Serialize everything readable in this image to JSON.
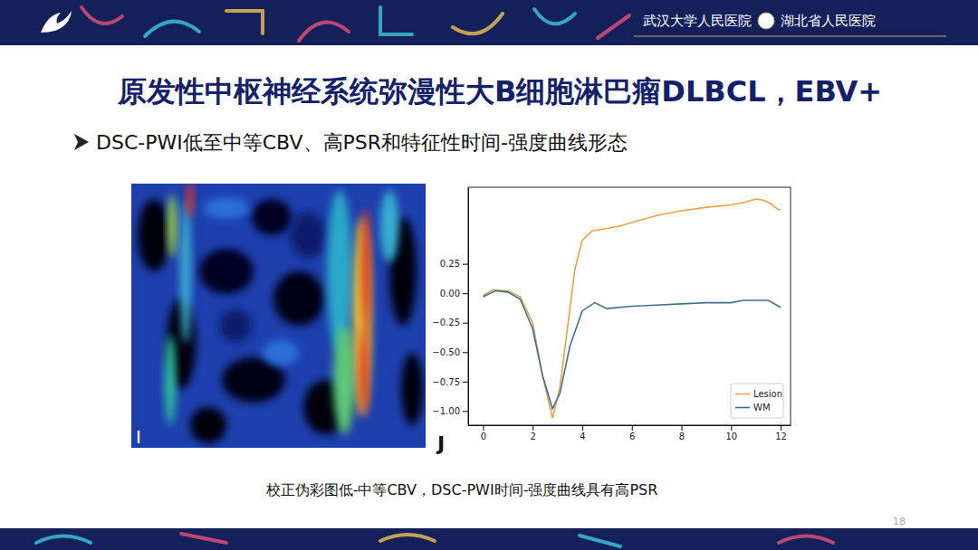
{
  "header": {
    "hospitals": [
      "武汉大学人民医院",
      "湖北省人民医院"
    ]
  },
  "slide": {
    "title": "原发性中枢神经系统弥漫性大B细胞淋巴瘤DLBCL，EBV+",
    "bullet": "DSC-PWI低至中等CBV、高PSR和特征性时间-强度曲线形态",
    "image_label": "I",
    "caption": "校正伪彩图低-中等CBV，DSC-PWI时间-强度曲线具有高PSR",
    "page": 18
  },
  "chart_data": {
    "type": "line",
    "panel_label": "J",
    "xlim": [
      -0.6,
      12.4
    ],
    "ylim": [
      -1.12,
      0.9
    ],
    "xticks": [
      0,
      2,
      4,
      6,
      8,
      10,
      12
    ],
    "yticks": [
      0.25,
      {
        "value": 0,
        "label": "0.00"
      },
      {
        "value": -0.25,
        "label": "−0.25"
      },
      {
        "value": -0.5,
        "label": "−0.50"
      },
      {
        "value": -0.75,
        "label": "−0.75"
      },
      {
        "value": -1,
        "label": "−1.00"
      }
    ],
    "grid": false,
    "legend": "lower right",
    "series": [
      {
        "name": "Lesion",
        "color": "#f0a040",
        "x": [
          0,
          0.4,
          1,
          1.5,
          2,
          2.4,
          2.8,
          3.1,
          3.4,
          3.7,
          4.0,
          4.4,
          5,
          5.5,
          6,
          7,
          8,
          9,
          10,
          10.5,
          11,
          11.3,
          11.6,
          11.9,
          12
        ],
        "values": [
          -0.02,
          0.03,
          0.02,
          -0.03,
          -0.25,
          -0.7,
          -1.06,
          -0.8,
          -0.3,
          0.2,
          0.45,
          0.53,
          0.55,
          0.57,
          0.6,
          0.66,
          0.7,
          0.73,
          0.75,
          0.77,
          0.8,
          0.79,
          0.76,
          0.71,
          0.71
        ]
      },
      {
        "name": "WM",
        "color": "#3d7194",
        "x": [
          0,
          0.5,
          1,
          1.5,
          2,
          2.4,
          2.8,
          3.1,
          3.5,
          4,
          4.5,
          5,
          6,
          7,
          8,
          9,
          10,
          10.5,
          11,
          11.5,
          12
        ],
        "values": [
          -0.03,
          0.02,
          0.01,
          -0.05,
          -0.3,
          -0.7,
          -0.98,
          -0.85,
          -0.45,
          -0.15,
          -0.08,
          -0.13,
          -0.11,
          -0.1,
          -0.09,
          -0.08,
          -0.08,
          -0.06,
          -0.06,
          -0.06,
          -0.12
        ]
      }
    ]
  }
}
